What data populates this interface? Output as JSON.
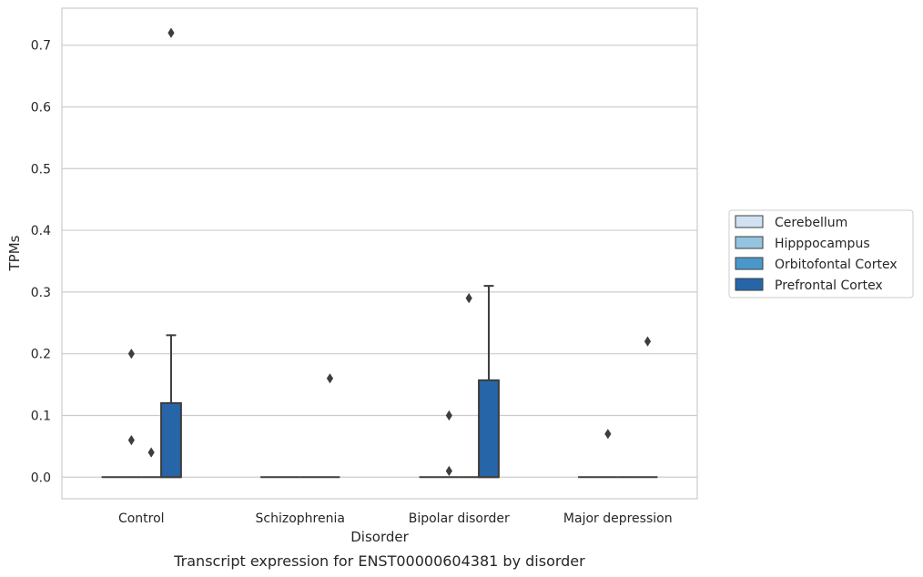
{
  "chart_data": {
    "type": "box",
    "title": "",
    "caption": "Transcript expression for ENST00000604381 by disorder",
    "xlabel": "Disorder",
    "ylabel": "TPMs",
    "ylim": [
      -0.035,
      0.76
    ],
    "yticks": [
      0.0,
      0.1,
      0.2,
      0.3,
      0.4,
      0.5,
      0.6,
      0.7
    ],
    "ytick_labels": [
      "0.0",
      "0.1",
      "0.2",
      "0.3",
      "0.4",
      "0.5",
      "0.6",
      "0.7"
    ],
    "grid": "horizontal",
    "legend_placement": "center-right, outside plot",
    "categories": [
      "Control",
      "Schizophrenia",
      "Bipolar disorder",
      "Major depression"
    ],
    "series": [
      {
        "name": "Cerebellum",
        "color": "#d0e1f2",
        "boxes": [
          {
            "q1": 0,
            "median": 0,
            "q3": 0,
            "whisker_low": 0,
            "whisker_high": 0,
            "outliers": []
          },
          {
            "q1": 0,
            "median": 0,
            "q3": 0,
            "whisker_low": 0,
            "whisker_high": 0,
            "outliers": []
          },
          {
            "q1": 0,
            "median": 0,
            "q3": 0,
            "whisker_low": 0,
            "whisker_high": 0,
            "outliers": []
          },
          {
            "q1": 0,
            "median": 0,
            "q3": 0,
            "whisker_low": 0,
            "whisker_high": 0,
            "outliers": []
          }
        ]
      },
      {
        "name": "Hipppocampus",
        "color": "#94c4df",
        "boxes": [
          {
            "q1": 0,
            "median": 0,
            "q3": 0,
            "whisker_low": 0,
            "whisker_high": 0,
            "outliers": [
              0.2,
              0.06
            ]
          },
          {
            "q1": 0,
            "median": 0,
            "q3": 0,
            "whisker_low": 0,
            "whisker_high": 0,
            "outliers": []
          },
          {
            "q1": 0,
            "median": 0,
            "q3": 0,
            "whisker_low": 0,
            "whisker_high": 0,
            "outliers": [
              0.1,
              0.01
            ]
          },
          {
            "q1": 0,
            "median": 0,
            "q3": 0,
            "whisker_low": 0,
            "whisker_high": 0,
            "outliers": [
              0.07
            ]
          }
        ]
      },
      {
        "name": "Orbitofontal Cortex",
        "color": "#4a98c9",
        "boxes": [
          {
            "q1": 0,
            "median": 0,
            "q3": 0,
            "whisker_low": 0,
            "whisker_high": 0,
            "outliers": [
              0.04
            ]
          },
          {
            "q1": 0,
            "median": 0,
            "q3": 0,
            "whisker_low": 0,
            "whisker_high": 0,
            "outliers": []
          },
          {
            "q1": 0,
            "median": 0,
            "q3": 0,
            "whisker_low": 0,
            "whisker_high": 0,
            "outliers": [
              0.29
            ]
          },
          {
            "q1": 0,
            "median": 0,
            "q3": 0,
            "whisker_low": 0,
            "whisker_high": 0,
            "outliers": []
          }
        ]
      },
      {
        "name": "Prefrontal Cortex",
        "color": "#2666a8",
        "boxes": [
          {
            "q1": 0,
            "median": 0,
            "q3": 0.12,
            "whisker_low": 0,
            "whisker_high": 0.23,
            "outliers": [
              0.72
            ]
          },
          {
            "q1": 0,
            "median": 0,
            "q3": 0,
            "whisker_low": 0,
            "whisker_high": 0,
            "outliers": [
              0.16
            ]
          },
          {
            "q1": 0,
            "median": 0,
            "q3": 0.157,
            "whisker_low": 0,
            "whisker_high": 0.31,
            "outliers": []
          },
          {
            "q1": 0,
            "median": 0,
            "q3": 0,
            "whisker_low": 0,
            "whisker_high": 0,
            "outliers": [
              0.22
            ]
          }
        ]
      }
    ]
  }
}
